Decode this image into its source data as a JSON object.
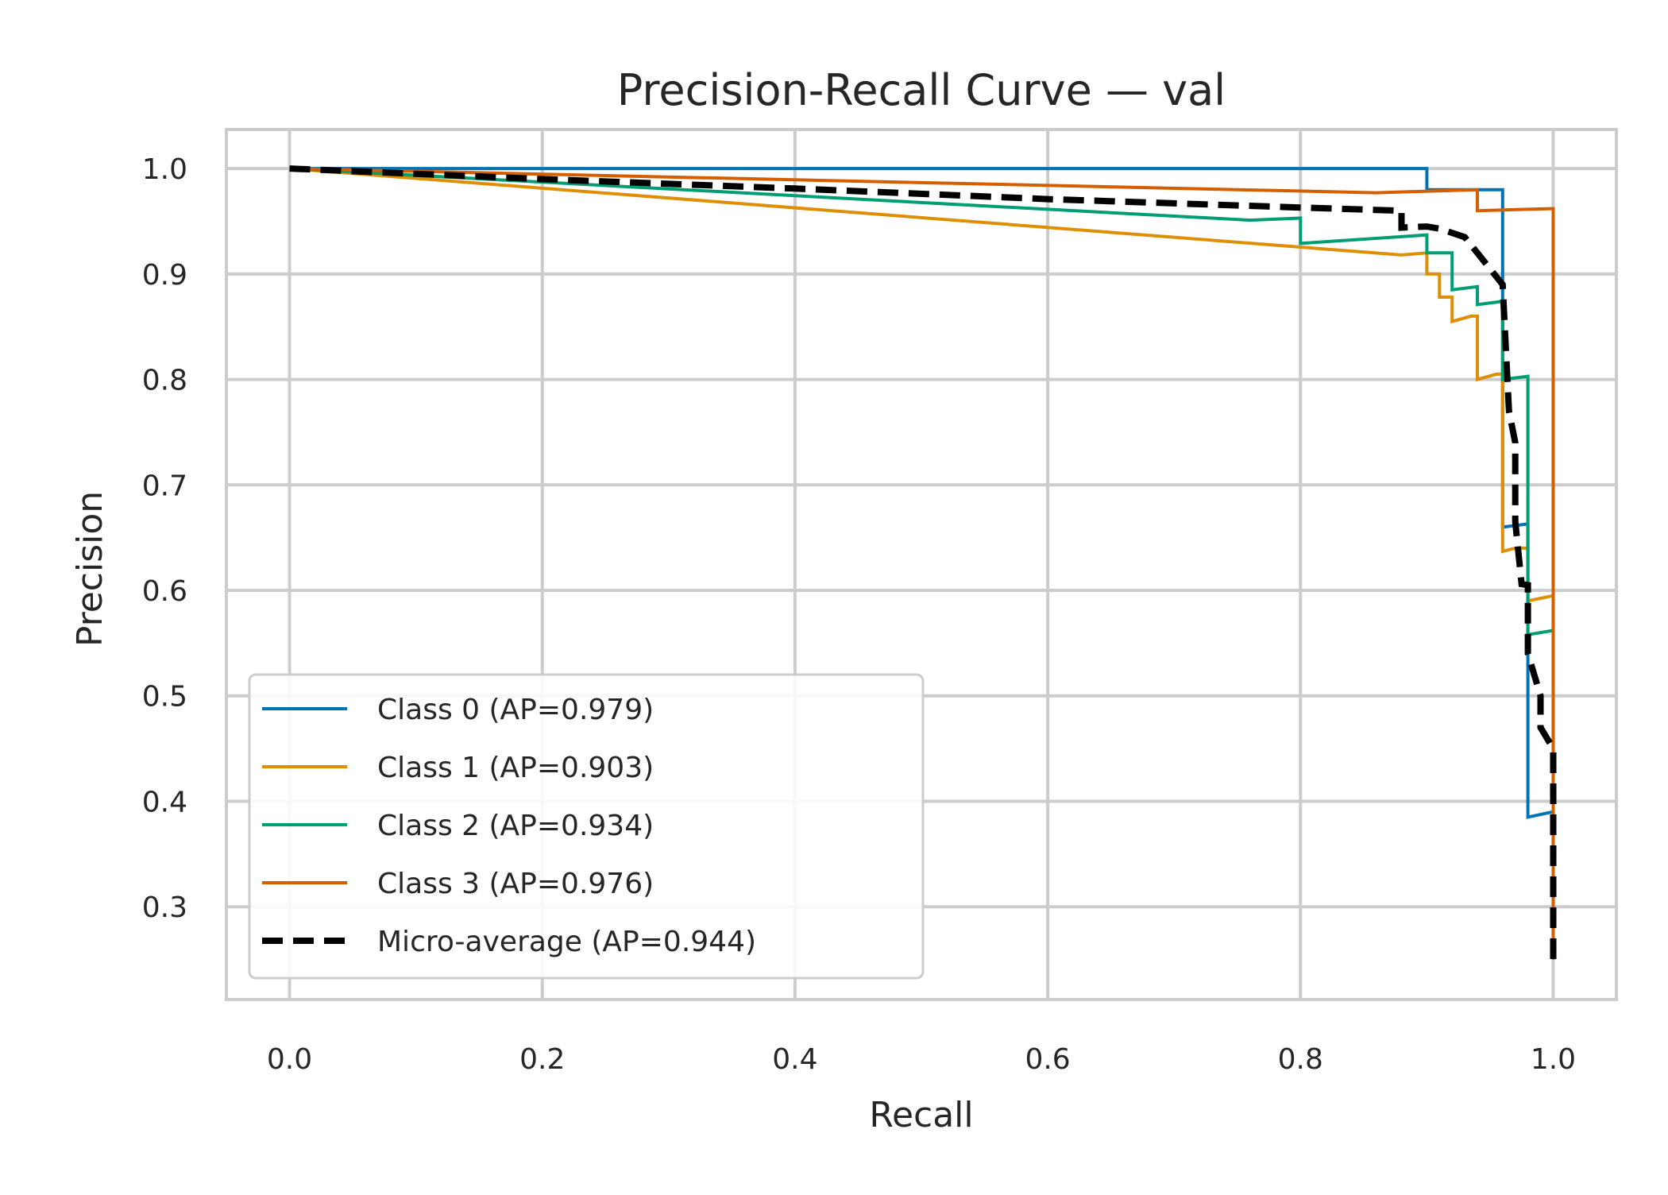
{
  "chart_data": {
    "type": "line",
    "title": "Precision-Recall Curve — val",
    "xlabel": "Recall",
    "ylabel": "Precision",
    "xlim": [
      -0.05,
      1.05
    ],
    "ylim": [
      0.212,
      1.037
    ],
    "xticks": [
      0.0,
      0.2,
      0.4,
      0.6,
      0.8,
      1.0
    ],
    "xtick_labels": [
      "0.0",
      "0.2",
      "0.4",
      "0.6",
      "0.8",
      "1.0"
    ],
    "yticks": [
      0.3,
      0.4,
      0.5,
      0.6,
      0.7,
      0.8,
      0.9,
      1.0
    ],
    "ytick_labels": [
      "0.3",
      "0.4",
      "0.5",
      "0.6",
      "0.7",
      "0.8",
      "0.9",
      "1.0"
    ],
    "grid": true,
    "legend_position": "lower-left",
    "series": [
      {
        "name": "Class 0 (AP=0.979)",
        "color": "#0173b2",
        "dashed": false,
        "points": [
          [
            0,
            1.0
          ],
          [
            0.9,
            1.0
          ],
          [
            0.9,
            0.98
          ],
          [
            0.96,
            0.98
          ],
          [
            0.96,
            0.96
          ],
          [
            0.96,
            0.66
          ],
          [
            0.98,
            0.663
          ],
          [
            0.98,
            0.385
          ],
          [
            1.0,
            0.39
          ],
          [
            1.0,
            0.25
          ]
        ]
      },
      {
        "name": "Class 1 (AP=0.903)",
        "color": "#de8f05",
        "dashed": false,
        "points": [
          [
            0,
            1.0
          ],
          [
            0.88,
            0.918
          ],
          [
            0.9,
            0.92
          ],
          [
            0.9,
            0.9
          ],
          [
            0.91,
            0.9
          ],
          [
            0.91,
            0.878
          ],
          [
            0.92,
            0.878
          ],
          [
            0.92,
            0.855
          ],
          [
            0.935,
            0.86
          ],
          [
            0.94,
            0.86
          ],
          [
            0.94,
            0.8
          ],
          [
            0.955,
            0.805
          ],
          [
            0.96,
            0.805
          ],
          [
            0.96,
            0.637
          ],
          [
            0.97,
            0.64
          ],
          [
            0.98,
            0.64
          ],
          [
            0.98,
            0.59
          ],
          [
            1.0,
            0.595
          ],
          [
            1.0,
            0.25
          ]
        ]
      },
      {
        "name": "Class 2 (AP=0.934)",
        "color": "#029e73",
        "dashed": false,
        "points": [
          [
            0,
            1.0
          ],
          [
            0.76,
            0.951
          ],
          [
            0.8,
            0.953
          ],
          [
            0.8,
            0.929
          ],
          [
            0.9,
            0.937
          ],
          [
            0.9,
            0.92
          ],
          [
            0.92,
            0.92
          ],
          [
            0.92,
            0.885
          ],
          [
            0.94,
            0.888
          ],
          [
            0.94,
            0.871
          ],
          [
            0.96,
            0.874
          ],
          [
            0.96,
            0.8
          ],
          [
            0.98,
            0.803
          ],
          [
            0.98,
            0.558
          ],
          [
            1.0,
            0.562
          ],
          [
            1.0,
            0.25
          ]
        ]
      },
      {
        "name": "Class 3 (AP=0.976)",
        "color": "#d55e00",
        "dashed": false,
        "points": [
          [
            0,
            1.0
          ],
          [
            0.86,
            0.977
          ],
          [
            0.94,
            0.98
          ],
          [
            0.94,
            0.96
          ],
          [
            1.0,
            0.962
          ],
          [
            1.0,
            0.25
          ]
        ]
      },
      {
        "name": "Micro-average (AP=0.944)",
        "color": "#000000",
        "dashed": true,
        "points": [
          [
            0,
            1.0
          ],
          [
            0.2,
            0.99
          ],
          [
            0.4,
            0.981
          ],
          [
            0.6,
            0.971
          ],
          [
            0.8,
            0.963
          ],
          [
            0.88,
            0.96
          ],
          [
            0.88,
            0.944
          ],
          [
            0.9,
            0.945
          ],
          [
            0.91,
            0.943
          ],
          [
            0.93,
            0.935
          ],
          [
            0.94,
            0.92
          ],
          [
            0.95,
            0.905
          ],
          [
            0.96,
            0.89
          ],
          [
            0.965,
            0.77
          ],
          [
            0.97,
            0.74
          ],
          [
            0.97,
            0.665
          ],
          [
            0.975,
            0.606
          ],
          [
            0.98,
            0.605
          ],
          [
            0.98,
            0.54
          ],
          [
            0.99,
            0.5
          ],
          [
            0.99,
            0.47
          ],
          [
            1.0,
            0.45
          ],
          [
            1.0,
            0.25
          ]
        ]
      }
    ]
  }
}
